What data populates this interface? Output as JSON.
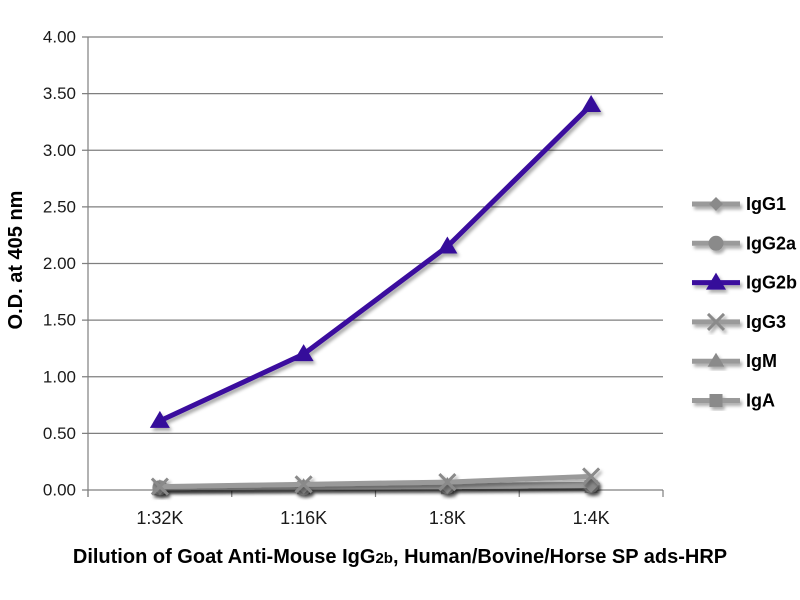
{
  "chart_data": {
    "type": "line",
    "title": "",
    "xlabel": "Dilution of Goat Anti-Mouse IgG2b, Human/Bovine/Horse SP ads-HRP",
    "xlabel_parts": {
      "pre": "Dilution of Goat Anti-Mouse IgG",
      "sub": "2b",
      "post": ", Human/Bovine/Horse SP ads-HRP"
    },
    "ylabel": "O.D. at 405 nm",
    "categories": [
      "1:32K",
      "1:16K",
      "1:8K",
      "1:4K"
    ],
    "ylim": [
      0,
      4.0
    ],
    "ytick_step": 0.5,
    "ytick_labels": [
      "0.00",
      "0.50",
      "1.00",
      "1.50",
      "2.00",
      "2.50",
      "3.00",
      "3.50",
      "4.00"
    ],
    "grid": true,
    "grid_color": "#7f7f7f",
    "text_color": "#1a1a1a",
    "legend_position": "right",
    "series": [
      {
        "name": "IgG1",
        "marker": "diamond",
        "color": "#9a9a9a",
        "marker_color": "#8a8a8a",
        "marker_size": 7,
        "values": [
          0.02,
          0.03,
          0.03,
          0.04
        ]
      },
      {
        "name": "IgG2a",
        "marker": "circle",
        "color": "#9a9a9a",
        "marker_color": "#8a8a8a",
        "marker_size": 7.5,
        "values": [
          0.02,
          0.02,
          0.03,
          0.04
        ]
      },
      {
        "name": "IgG2b",
        "marker": "triangle",
        "color": "#3a0c9e",
        "marker_color": "#35089a",
        "marker_size": 9,
        "values": [
          0.61,
          1.2,
          2.15,
          3.4
        ]
      },
      {
        "name": "IgG3",
        "marker": "x",
        "color": "#9a9a9a",
        "marker_color": "#8a8a8a",
        "marker_size": 8,
        "values": [
          0.03,
          0.05,
          0.07,
          0.12
        ]
      },
      {
        "name": "IgM",
        "marker": "triangle",
        "color": "#9a9a9a",
        "marker_color": "#8a8a8a",
        "marker_size": 7.5,
        "values": [
          0.02,
          0.03,
          0.04,
          0.05
        ]
      },
      {
        "name": "IgA",
        "marker": "square",
        "color": "#9a9a9a",
        "marker_color": "#8a8a8a",
        "marker_size": 6.5,
        "values": [
          0.01,
          0.02,
          0.02,
          0.03
        ]
      }
    ]
  }
}
